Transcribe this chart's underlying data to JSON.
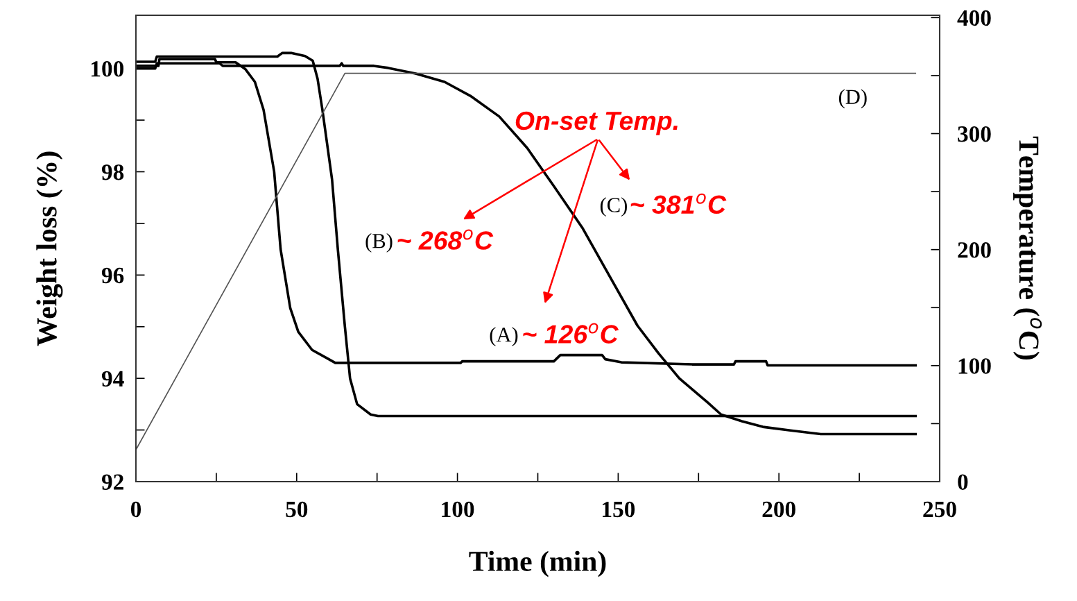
{
  "chart_data": {
    "type": "line",
    "xlabel": "Time (min)",
    "ylabel": "Weight loss (%)",
    "y2label": "Temperature ($^{o}$C)",
    "xlim": [
      0,
      250
    ],
    "xticks": [
      0,
      {
        "value": 25,
        "label": null
      },
      50,
      {
        "value": 75,
        "label": null
      },
      100,
      {
        "value": 125,
        "label": null
      },
      150,
      {
        "value": 175,
        "label": null
      },
      200,
      {
        "value": 225,
        "label": null
      },
      250
    ],
    "ylim": [
      92,
      101.03
    ],
    "yticks": [
      92,
      {
        "value": 93,
        "label": null
      },
      94,
      {
        "value": 95,
        "label": null
      },
      96,
      {
        "value": 97,
        "label": null
      },
      98,
      {
        "value": 99,
        "label": null
      },
      100
    ],
    "y2lim": [
      0,
      402
    ],
    "y2ticks": [
      0,
      {
        "value": 50,
        "label": null
      },
      100,
      {
        "value": 150,
        "label": null
      },
      200,
      {
        "value": 250,
        "label": null
      },
      300,
      {
        "value": 350,
        "label": null
      },
      400
    ],
    "grid": false,
    "marker": "none",
    "line_style": "solid",
    "series": [
      {
        "color": "#000000",
        "x": [
          0,
          7,
          7.3,
          24.6,
          25,
          31,
          34,
          37,
          39.7,
          43,
          45,
          48,
          50.5,
          54.8,
          60,
          62,
          101,
          101.5,
          130,
          132,
          145,
          146,
          151,
          173,
          186,
          186.5,
          196,
          196.5,
          242.5
        ],
        "values": [
          100.05,
          100.05,
          100.18,
          100.18,
          100.12,
          100.12,
          99.99,
          99.74,
          99.2,
          98.0,
          96.5,
          95.36,
          94.9,
          94.55,
          94.37,
          94.3,
          94.3,
          94.33,
          94.33,
          94.45,
          94.45,
          94.37,
          94.31,
          94.27,
          94.27,
          94.33,
          94.33,
          94.25,
          94.25
        ]
      },
      {
        "color": "#000000",
        "x": [
          0,
          6,
          6.5,
          44,
          45.5,
          48.3,
          52.6,
          55,
          56.5,
          58,
          61,
          62.8,
          65,
          66.6,
          68.8,
          73,
          75.3,
          242.5
        ],
        "values": [
          100.13,
          100.13,
          100.23,
          100.23,
          100.3,
          100.3,
          100.24,
          100.15,
          99.8,
          99.2,
          97.85,
          96.5,
          95.0,
          94.0,
          93.5,
          93.3,
          93.27,
          93.27
        ]
      },
      {
        "color": "#000000",
        "x": [
          0,
          6,
          6.5,
          26,
          27,
          63.4,
          64,
          64.5,
          74,
          78.5,
          87,
          96,
          104,
          113,
          121.7,
          130,
          139,
          147.5,
          156,
          162.6,
          169,
          177.7,
          182,
          188.5,
          195,
          203.6,
          213,
          242.5
        ],
        "values": [
          100.0,
          100.0,
          100.1,
          100.1,
          100.05,
          100.05,
          100.1,
          100.05,
          100.05,
          100.01,
          99.9,
          99.74,
          99.47,
          99.07,
          98.46,
          97.72,
          96.9,
          95.96,
          95.02,
          94.48,
          94.0,
          93.54,
          93.3,
          93.17,
          93.06,
          92.99,
          92.92,
          92.92
        ]
      },
      {
        "color": "#555555",
        "axis": "y2",
        "x": [
          0,
          65,
          242.5
        ],
        "values": [
          27.5,
          352,
          352
        ]
      }
    ],
    "annotations": [
      "On-set Temp.",
      "(B)",
      "~ 268$^{o}$C",
      "(A)",
      "~ 126$^{o}$C",
      "(C)",
      "~ 381$^{o}$C",
      "(D)"
    ]
  }
}
